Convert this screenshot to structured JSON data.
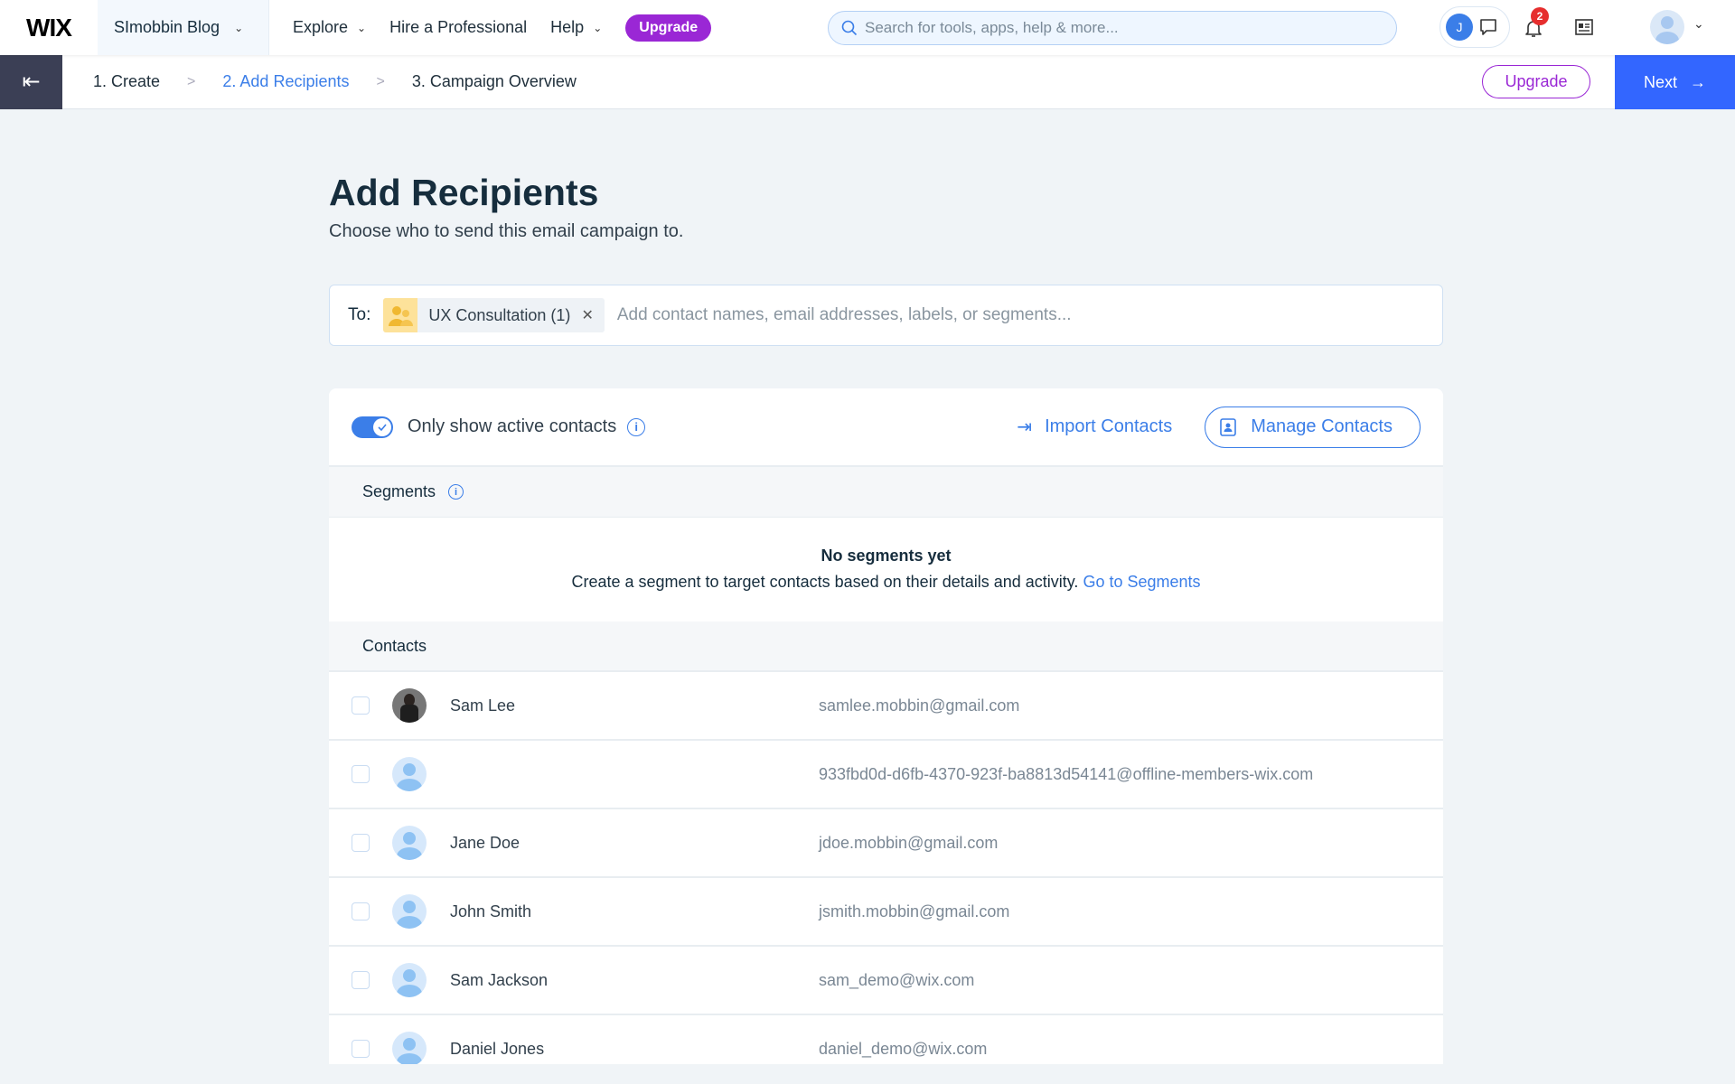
{
  "topbar": {
    "logo": "WIX",
    "site": "SImobbin Blog",
    "nav": [
      "Explore",
      "Hire a Professional",
      "Help"
    ],
    "upgrade": "Upgrade",
    "search_placeholder": "Search for tools, apps, help & more...",
    "user_initial": "J",
    "notifications": "2"
  },
  "steps": [
    "1. Create",
    "2. Add Recipients",
    "3. Campaign Overview"
  ],
  "subbar": {
    "upgrade": "Upgrade",
    "next": "Next"
  },
  "page": {
    "title": "Add Recipients",
    "subtitle": "Choose who to send this email campaign to."
  },
  "to": {
    "label": "To:",
    "chip": "UX Consultation (1)",
    "placeholder": "Add contact names, email addresses, labels, or segments..."
  },
  "toolbar": {
    "toggle_label": "Only show active contacts",
    "toggle_on": true,
    "import": "Import Contacts",
    "manage": "Manage Contacts"
  },
  "segments": {
    "header": "Segments",
    "empty_title": "No segments yet",
    "empty_text": "Create a segment to target contacts based on their details and activity.",
    "link": "Go to Segments"
  },
  "contacts": {
    "header": "Contacts",
    "rows": [
      {
        "name": "Sam Lee",
        "email": "samlee.mobbin@gmail.com",
        "photo": true
      },
      {
        "name": "",
        "email": "933fbd0d-d6fb-4370-923f-ba8813d54141@offline-members-wix.com"
      },
      {
        "name": "Jane Doe",
        "email": "jdoe.mobbin@gmail.com"
      },
      {
        "name": "John Smith",
        "email": "jsmith.mobbin@gmail.com"
      },
      {
        "name": "Sam Jackson",
        "email": "sam_demo@wix.com"
      },
      {
        "name": "Daniel Jones",
        "email": "daniel_demo@wix.com"
      }
    ]
  },
  "colors": {
    "accent": "#3b7ee8",
    "upgrade": "#9a27d5",
    "next": "#3366ff"
  }
}
